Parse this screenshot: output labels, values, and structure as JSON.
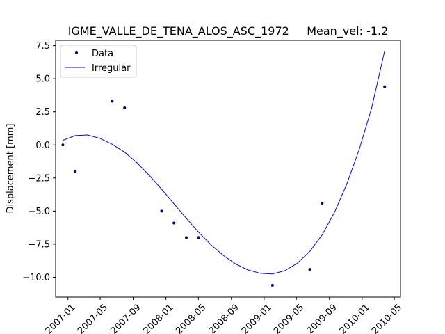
{
  "chart_data": {
    "type": "line",
    "title": "IGME_VALLE_DE_TENA_ALOS_ASC_1972     Mean_vel: -1.2",
    "xlabel": "",
    "ylabel": "Displacement [mm]",
    "xlim": [
      "2006-11-16",
      "2010-05-24"
    ],
    "ylim": [
      -11.5,
      7.9
    ],
    "x_ticks": [
      "2007-01",
      "2007-05",
      "2007-09",
      "2008-01",
      "2008-05",
      "2008-09",
      "2009-01",
      "2009-05",
      "2009-09",
      "2010-01",
      "2010-05"
    ],
    "y_ticks": [
      -10.0,
      -7.5,
      -5.0,
      -2.5,
      0.0,
      2.5,
      5.0,
      7.5
    ],
    "grid": false,
    "legend_position": "upper-left",
    "series": [
      {
        "name": "Data",
        "kind": "scatter",
        "color": "#00007f",
        "points": [
          {
            "x": "2006-12-13",
            "y": 0.0
          },
          {
            "x": "2007-01-28",
            "y": -2.0
          },
          {
            "x": "2007-06-15",
            "y": 3.3
          },
          {
            "x": "2007-07-31",
            "y": 2.8
          },
          {
            "x": "2007-12-16",
            "y": -5.0
          },
          {
            "x": "2008-01-31",
            "y": -5.9
          },
          {
            "x": "2008-03-17",
            "y": -7.0
          },
          {
            "x": "2008-05-02",
            "y": -7.0
          },
          {
            "x": "2009-02-01",
            "y": -10.6
          },
          {
            "x": "2009-06-20",
            "y": -9.4
          },
          {
            "x": "2009-08-05",
            "y": -4.4
          },
          {
            "x": "2010-03-26",
            "y": 4.4
          }
        ]
      },
      {
        "name": "Irregular",
        "kind": "line",
        "color": "#0000ff",
        "points": [
          {
            "x": "2006-12-13",
            "y": 0.35
          },
          {
            "x": "2007-01-28",
            "y": 0.7
          },
          {
            "x": "2007-03-15",
            "y": 0.75
          },
          {
            "x": "2007-04-30",
            "y": 0.5
          },
          {
            "x": "2007-06-15",
            "y": 0.05
          },
          {
            "x": "2007-07-31",
            "y": -0.55
          },
          {
            "x": "2007-09-15",
            "y": -1.35
          },
          {
            "x": "2007-10-31",
            "y": -2.3
          },
          {
            "x": "2007-12-16",
            "y": -3.35
          },
          {
            "x": "2008-01-31",
            "y": -4.45
          },
          {
            "x": "2008-03-17",
            "y": -5.55
          },
          {
            "x": "2008-05-02",
            "y": -6.6
          },
          {
            "x": "2008-06-17",
            "y": -7.55
          },
          {
            "x": "2008-08-02",
            "y": -8.35
          },
          {
            "x": "2008-09-17",
            "y": -9.0
          },
          {
            "x": "2008-11-02",
            "y": -9.45
          },
          {
            "x": "2008-12-18",
            "y": -9.7
          },
          {
            "x": "2009-02-01",
            "y": -9.75
          },
          {
            "x": "2009-03-19",
            "y": -9.5
          },
          {
            "x": "2009-05-04",
            "y": -8.95
          },
          {
            "x": "2009-06-20",
            "y": -8.05
          },
          {
            "x": "2009-08-05",
            "y": -6.8
          },
          {
            "x": "2009-09-20",
            "y": -5.1
          },
          {
            "x": "2009-11-05",
            "y": -2.95
          },
          {
            "x": "2009-12-21",
            "y": -0.35
          },
          {
            "x": "2010-02-05",
            "y": 2.75
          },
          {
            "x": "2010-03-26",
            "y": 7.1
          }
        ]
      }
    ]
  }
}
